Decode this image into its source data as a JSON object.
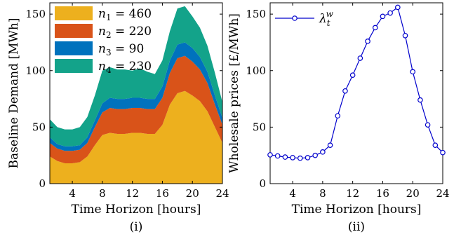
{
  "chart_data": [
    {
      "type": "area",
      "stacked": true,
      "x": [
        1,
        2,
        3,
        4,
        5,
        6,
        7,
        8,
        9,
        10,
        11,
        12,
        13,
        14,
        15,
        16,
        17,
        18,
        19,
        20,
        21,
        22,
        23,
        24
      ],
      "xlim": [
        1,
        24
      ],
      "ylim": [
        0,
        160
      ],
      "xticks": [
        4,
        8,
        12,
        16,
        20,
        24
      ],
      "yticks": [
        0,
        50,
        100,
        150
      ],
      "xlabel": "Time Horizon [hours]",
      "ylabel": "Baseline Demand [MWh]",
      "sublabel": "(i)",
      "legend_position": "top-left",
      "series": [
        {
          "name": "n1 = 460",
          "name_base": "n",
          "name_sub": "1",
          "name_rest": " = 460",
          "color": "#EDB01E",
          "values": [
            24,
            20,
            18,
            18,
            19,
            24,
            34,
            43,
            45,
            44,
            44,
            45,
            45,
            44,
            44,
            52,
            70,
            80,
            82,
            78,
            73,
            64,
            50,
            36
          ]
        },
        {
          "name": "n2 = 220",
          "name_base": "n",
          "name_sub": "2",
          "name_rest": " = 220",
          "color": "#D95319",
          "values": [
            12,
            11,
            11,
            11,
            11,
            12,
            16,
            20,
            22,
            22,
            22,
            22,
            22,
            22,
            22,
            24,
            28,
            31,
            31,
            30,
            28,
            25,
            20,
            16
          ]
        },
        {
          "name": "n3 = 90",
          "name_base": "n",
          "name_sub": "3",
          "name_rest": " = 90",
          "color": "#0072BD",
          "values": [
            5,
            4,
            4,
            4,
            4,
            5,
            6,
            8,
            9,
            9,
            9,
            9,
            9,
            9,
            9,
            10,
            11,
            12,
            12,
            12,
            11,
            10,
            8,
            6
          ]
        },
        {
          "name": "n4 = 230",
          "name_base": "n",
          "name_sub": "4",
          "name_rest": " = 230",
          "color": "#13A38A",
          "values": [
            16,
            15,
            15,
            15,
            16,
            18,
            22,
            29,
            27,
            26,
            26,
            24,
            26,
            24,
            22,
            23,
            26,
            32,
            32,
            28,
            26,
            23,
            20,
            14
          ]
        }
      ]
    },
    {
      "type": "line",
      "x": [
        1,
        2,
        3,
        4,
        5,
        6,
        7,
        8,
        9,
        10,
        11,
        12,
        13,
        14,
        15,
        16,
        17,
        18,
        19,
        20,
        21,
        22,
        23,
        24
      ],
      "xlim": [
        1,
        24
      ],
      "ylim": [
        0,
        160
      ],
      "xticks": [
        4,
        8,
        12,
        16,
        20,
        24
      ],
      "yticks": [
        0,
        50,
        100,
        150
      ],
      "xlabel": "Time Horizon [hours]",
      "ylabel": "Wholesale prices [£/MWh]",
      "sublabel": "(ii)",
      "legend_position": "top-left",
      "series": [
        {
          "name": "λ_t^w",
          "name_base": "λ",
          "name_sub": "t",
          "name_sup": "w",
          "color": "#0000CC",
          "values": [
            25.5,
            24.5,
            23.5,
            23,
            22.5,
            23,
            25,
            28,
            34,
            60,
            82,
            96,
            111,
            126,
            138,
            148,
            151,
            156,
            131,
            99,
            74,
            52,
            34,
            27.5
          ]
        }
      ]
    }
  ]
}
